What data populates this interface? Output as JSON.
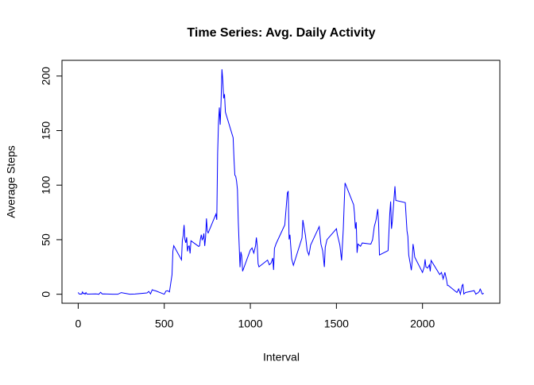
{
  "chart_data": {
    "type": "line",
    "title": "Time Series: Avg. Daily Activity",
    "xlabel": "Interval",
    "ylabel": "Average Steps",
    "x": [
      0,
      5,
      10,
      15,
      20,
      25,
      30,
      35,
      40,
      45,
      50,
      55,
      100,
      110,
      120,
      130,
      140,
      150,
      200,
      230,
      250,
      300,
      330,
      400,
      410,
      420,
      430,
      440,
      450,
      500,
      510,
      520,
      530,
      545,
      550,
      555,
      600,
      605,
      610,
      615,
      620,
      625,
      630,
      635,
      640,
      645,
      650,
      655,
      700,
      705,
      710,
      715,
      720,
      725,
      730,
      735,
      740,
      745,
      750,
      755,
      800,
      805,
      810,
      815,
      820,
      825,
      830,
      835,
      840,
      845,
      850,
      855,
      900,
      905,
      910,
      915,
      920,
      925,
      930,
      935,
      940,
      945,
      950,
      955,
      1000,
      1010,
      1020,
      1030,
      1035,
      1040,
      1045,
      1050,
      1100,
      1110,
      1120,
      1130,
      1135,
      1140,
      1150,
      1200,
      1215,
      1220,
      1225,
      1230,
      1240,
      1250,
      1300,
      1305,
      1320,
      1330,
      1340,
      1345,
      1350,
      1400,
      1410,
      1420,
      1430,
      1435,
      1445,
      1500,
      1505,
      1520,
      1530,
      1540,
      1545,
      1550,
      1600,
      1605,
      1610,
      1615,
      1620,
      1625,
      1640,
      1650,
      1700,
      1710,
      1720,
      1730,
      1740,
      1745,
      1750,
      1800,
      1810,
      1815,
      1820,
      1825,
      1830,
      1840,
      1845,
      1900,
      1910,
      1915,
      1920,
      1930,
      1935,
      1940,
      1945,
      1950,
      1955,
      2000,
      2010,
      2015,
      2020,
      2030,
      2040,
      2045,
      2050,
      2100,
      2110,
      2120,
      2130,
      2140,
      2145,
      2150,
      2200,
      2210,
      2220,
      2230,
      2235,
      2240,
      2250,
      2300,
      2310,
      2315,
      2320,
      2330,
      2335,
      2340,
      2345,
      2350,
      2355
    ],
    "series": [
      {
        "name": "steps",
        "color": "#0000ff",
        "values": [
          1.7,
          0.3,
          0.1,
          0.2,
          0.1,
          2.1,
          0.5,
          0.9,
          0,
          1.5,
          0.3,
          0.1,
          0.3,
          0.2,
          0,
          1.8,
          0.2,
          0.3,
          0,
          0,
          1.5,
          0,
          0.2,
          1.2,
          2.6,
          0.3,
          4.1,
          3.5,
          3.1,
          0,
          3,
          3.2,
          2.1,
          18,
          39.5,
          44.5,
          31.5,
          49.3,
          53.8,
          63.5,
          50,
          47.1,
          52.2,
          39.3,
          44,
          44.2,
          37.4,
          49,
          43.8,
          44.4,
          50.5,
          54.5,
          49.9,
          51,
          55.7,
          44.3,
          52.3,
          69.5,
          57.8,
          56.2,
          73.4,
          68.2,
          129.4,
          157.5,
          171.2,
          155.4,
          177.3,
          206.2,
          195.9,
          179.6,
          183.4,
          167,
          143.5,
          124,
          109.1,
          108.1,
          103.7,
          95.9,
          66.2,
          45.2,
          24.8,
          38.8,
          34.9,
          21.1,
          40.6,
          42.4,
          37.7,
          44.3,
          52,
          44.5,
          28,
          25.1,
          31.3,
          27,
          28.4,
          33.2,
          22.2,
          42,
          46.5,
          63.5,
          92.8,
          94.6,
          50.2,
          54.5,
          32.4,
          26.5,
          51.6,
          68,
          54,
          40,
          36,
          40,
          45,
          62,
          46,
          40,
          25,
          43,
          50,
          60,
          55,
          45,
          31,
          60,
          82,
          102,
          82,
          74,
          60,
          66,
          38,
          46,
          44,
          47,
          46,
          50,
          62,
          68,
          78,
          65,
          36,
          40,
          74,
          85,
          60,
          67,
          78,
          99,
          86,
          84,
          58,
          53,
          36,
          27,
          22,
          30,
          46,
          41,
          34,
          20,
          25,
          32,
          25,
          24,
          27,
          21,
          31,
          18,
          20,
          14,
          20,
          13,
          8,
          8,
          1.6,
          4.9,
          0.1,
          8,
          9,
          0.2,
          1.6,
          3.3,
          0,
          0.8,
          1,
          2.6,
          4.7,
          3.3,
          0.6,
          0.2,
          1.1
        ]
      }
    ],
    "xlim": [
      -94.2,
      2449.2
    ],
    "ylim": [
      -8.25,
      214.4
    ],
    "xticks": [
      0,
      500,
      1000,
      1500,
      2000
    ],
    "yticks": [
      0,
      50,
      100,
      150,
      200
    ]
  }
}
